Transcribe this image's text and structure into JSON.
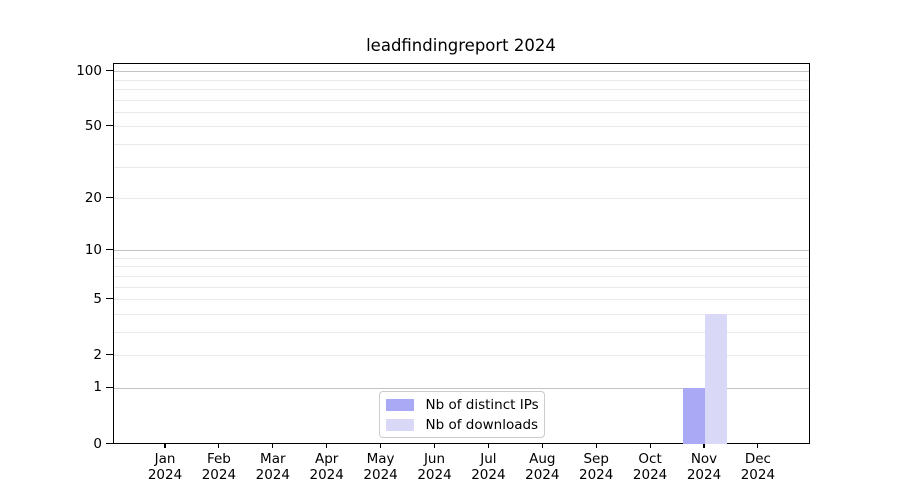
{
  "chart_data": {
    "type": "bar",
    "title": "leadfindingreport 2024",
    "categories": [
      "Jan",
      "Feb",
      "Mar",
      "Apr",
      "May",
      "Jun",
      "Jul",
      "Aug",
      "Sep",
      "Oct",
      "Nov",
      "Dec"
    ],
    "category_year": "2024",
    "series": [
      {
        "name": "Nb of distinct IPs",
        "color": "#a9a9f5",
        "values": [
          0,
          0,
          0,
          0,
          0,
          0,
          0,
          0,
          0,
          0,
          1,
          0
        ]
      },
      {
        "name": "Nb of downloads",
        "color": "#d9d9f7",
        "values": [
          0,
          0,
          0,
          0,
          0,
          0,
          0,
          0,
          0,
          0,
          4,
          0
        ]
      }
    ],
    "xlabel": "",
    "ylabel": "",
    "y_scale": "log10(1+y)",
    "ylim": [
      0,
      110
    ],
    "y_ticks": [
      0,
      1,
      2,
      5,
      10,
      20,
      50,
      100
    ],
    "grid": {
      "major": [
        1,
        10,
        100
      ],
      "minor": [
        2,
        3,
        4,
        5,
        6,
        7,
        8,
        9,
        20,
        30,
        40,
        50,
        60,
        70,
        80,
        90
      ]
    },
    "legend_position": "lower center",
    "colors": {
      "spine": "#000000",
      "grid_major": "#c3c3c3",
      "grid_minor": "#e9e9e9",
      "text": "#000000"
    }
  }
}
